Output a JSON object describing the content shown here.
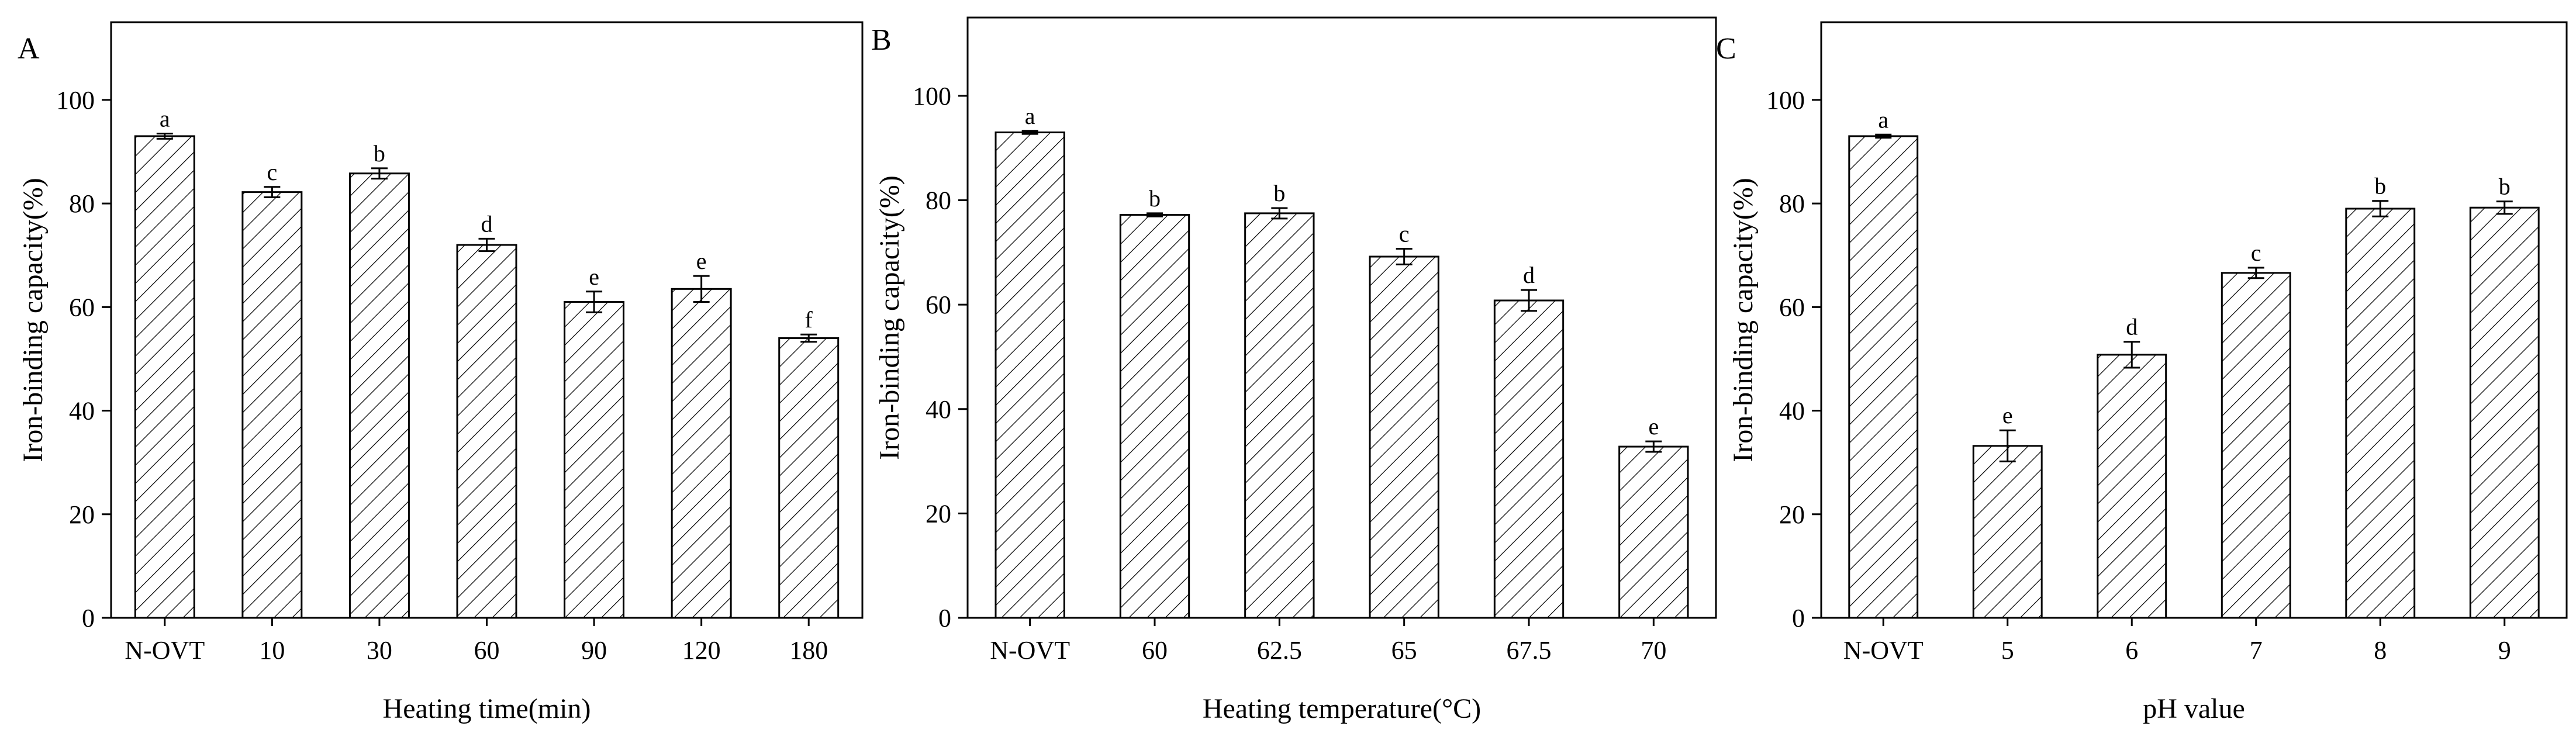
{
  "chart_data": [
    {
      "type": "bar",
      "panel": "A",
      "categories": [
        "N-OVT",
        "10",
        "30",
        "60",
        "90",
        "120",
        "180"
      ],
      "values": [
        93.0,
        82.2,
        85.8,
        72.0,
        61.0,
        63.5,
        54.0
      ],
      "errors": [
        0.5,
        1.0,
        1.0,
        1.2,
        2.0,
        2.5,
        0.7
      ],
      "significance": [
        "a",
        "c",
        "b",
        "d",
        "e",
        "e",
        "f"
      ],
      "title": "",
      "xlabel": "Heating time(min)",
      "ylabel": "Iron-binding capacity(%)",
      "ylim": [
        0,
        115
      ],
      "yticks": [
        0,
        20,
        40,
        60,
        80,
        100
      ],
      "ytick_labels": [
        "0",
        "20",
        "40",
        "60",
        "80",
        "100"
      ]
    },
    {
      "type": "bar",
      "panel": "B",
      "categories": [
        "N-OVT",
        "60",
        "62.5",
        "65",
        "67.5",
        "70"
      ],
      "values": [
        93.0,
        77.2,
        77.5,
        69.2,
        60.8,
        32.8
      ],
      "errors": [
        0.3,
        0.3,
        1.0,
        1.5,
        2.0,
        1.0
      ],
      "significance": [
        "a",
        "b",
        "b",
        "c",
        "d",
        "e"
      ],
      "title": "",
      "xlabel": "Heating temperature(°C)",
      "ylabel": "Iron-binding capacity(%)",
      "ylim": [
        0,
        115
      ],
      "yticks": [
        0,
        20,
        40,
        60,
        80,
        100
      ],
      "ytick_labels": [
        "0",
        "20",
        "40",
        "60",
        "80",
        "100"
      ]
    },
    {
      "type": "bar",
      "panel": "C",
      "categories": [
        "N-OVT",
        "5",
        "6",
        "7",
        "8",
        "9"
      ],
      "values": [
        93.0,
        33.2,
        50.8,
        66.6,
        79.0,
        79.2
      ],
      "errors": [
        0.3,
        3.0,
        2.5,
        1.0,
        1.5,
        1.2
      ],
      "significance": [
        "a",
        "e",
        "d",
        "c",
        "b",
        "b"
      ],
      "title": "",
      "xlabel": "pH value",
      "ylabel": "Iron-binding capacity(%)",
      "ylim": [
        0,
        115
      ],
      "yticks": [
        0,
        20,
        40,
        60,
        80,
        100
      ],
      "ytick_labels": [
        "0",
        "20",
        "40",
        "60",
        "80",
        "100"
      ]
    }
  ]
}
